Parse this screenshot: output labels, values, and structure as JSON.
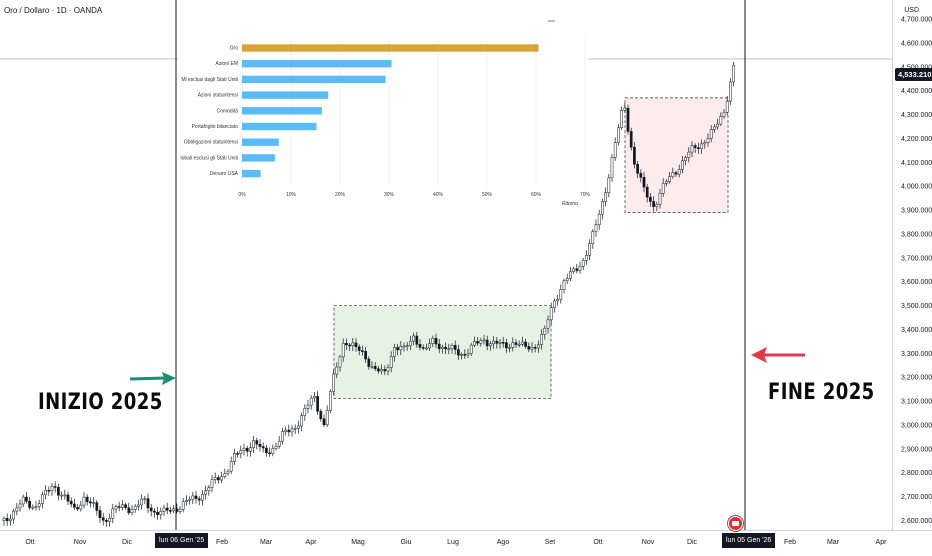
{
  "symbol": "Oro / Dollaro · 1D · OANDA",
  "currency": "USD",
  "current_price": "4,533.210",
  "time_markers": {
    "start": "lun 06 Gen '25",
    "end": "lun 05 Gen '26"
  },
  "annotations": {
    "start": "INIZIO 2025",
    "end": "FINE 2025"
  },
  "colors": {
    "gold_bar": "#d8a43a",
    "blue_bar": "#5bbcf5",
    "arrow_start": "#1c8e77",
    "arrow_end": "#e23a4a",
    "candle": "#131722",
    "range_green": "#e6f2e3",
    "range_red": "#fdeceb"
  },
  "chart_data": [
    {
      "type": "candlestick",
      "x_axis": {
        "ticks": [
          "Ott",
          "Nov",
          "Dic",
          "Feb",
          "Mar",
          "Apr",
          "Mag",
          "Giu",
          "Lug",
          "Ago",
          "Set",
          "Ott",
          "Nov",
          "Dic",
          "Feb",
          "Mar",
          "Apr"
        ]
      },
      "y_axis": {
        "ticks": [
          "2,600.000",
          "2,700.000",
          "2,800.000",
          "2,900.000",
          "3,000.000",
          "3,100.000",
          "3,200.000",
          "3,300.000",
          "3,400.000",
          "3,500.000",
          "3,600.000",
          "3,700.000",
          "3,800.000",
          "3,900.000",
          "4,000.000",
          "4,100.000",
          "4,200.000",
          "4,300.000",
          "4,400.000",
          "4,500.000",
          "4,600.000",
          "4,700.000"
        ],
        "range": [
          2560,
          4780
        ]
      },
      "series": [
        {
          "points": [
            [
              0,
              2600
            ],
            [
              10,
              2640
            ],
            [
              20,
              2680
            ],
            [
              30,
              2660
            ],
            [
              40,
              2700
            ],
            [
              50,
              2750
            ],
            [
              60,
              2700
            ],
            [
              70,
              2640
            ],
            [
              80,
              2700
            ],
            [
              90,
              2650
            ],
            [
              100,
              2600
            ],
            [
              110,
              2640
            ],
            [
              120,
              2660
            ],
            [
              130,
              2650
            ],
            [
              140,
              2680
            ],
            [
              150,
              2640
            ],
            [
              160,
              2630
            ],
            [
              170,
              2650
            ],
            [
              180,
              2670
            ],
            [
              190,
              2690
            ],
            [
              200,
              2720
            ],
            [
              210,
              2760
            ],
            [
              220,
              2800
            ],
            [
              230,
              2860
            ],
            [
              240,
              2900
            ],
            [
              250,
              2930
            ],
            [
              260,
              2880
            ],
            [
              270,
              2910
            ],
            [
              280,
              2960
            ],
            [
              290,
              2990
            ],
            [
              300,
              3050
            ],
            [
              310,
              3120
            ],
            [
              320,
              3000
            ],
            [
              330,
              3200
            ],
            [
              340,
              3360
            ],
            [
              350,
              3320
            ],
            [
              360,
              3300
            ],
            [
              370,
              3230
            ],
            [
              380,
              3210
            ],
            [
              390,
              3330
            ],
            [
              400,
              3310
            ],
            [
              410,
              3380
            ],
            [
              420,
              3300
            ],
            [
              430,
              3360
            ],
            [
              440,
              3320
            ],
            [
              450,
              3310
            ],
            [
              460,
              3300
            ],
            [
              470,
              3330
            ],
            [
              480,
              3360
            ],
            [
              490,
              3340
            ],
            [
              500,
              3330
            ],
            [
              510,
              3350
            ],
            [
              520,
              3320
            ],
            [
              530,
              3330
            ],
            [
              540,
              3380
            ],
            [
              550,
              3520
            ],
            [
              560,
              3600
            ],
            [
              570,
              3640
            ],
            [
              580,
              3700
            ],
            [
              590,
              3800
            ],
            [
              600,
              3960
            ],
            [
              610,
              4150
            ],
            [
              620,
              4350
            ],
            [
              630,
              4100
            ],
            [
              640,
              3980
            ],
            [
              650,
              3920
            ],
            [
              660,
              4000
            ],
            [
              670,
              4060
            ],
            [
              680,
              4110
            ],
            [
              690,
              4160
            ],
            [
              700,
              4190
            ],
            [
              710,
              4230
            ],
            [
              720,
              4320
            ],
            [
              730,
              4500
            ]
          ]
        }
      ]
    },
    {
      "type": "bar",
      "orientation": "horizontal",
      "legend": "",
      "xlabel": "Ritorno",
      "xticks": [
        "0%",
        "10%",
        "20%",
        "30%",
        "40%",
        "50%",
        "60%",
        "70%"
      ],
      "xlim": [
        0,
        70
      ],
      "categories": [
        "Oro",
        "Azioni EM",
        "Mi esclusi dagli Stati Uniti",
        "Azioni statunitensi",
        "Comodità",
        "Portafoglio bilanciato",
        "Obbligazioni statunitensi",
        "lobali esclusi gli Stati Uniti",
        "Denaro USA"
      ],
      "values": [
        60.5,
        30.5,
        29.3,
        17.6,
        16.3,
        15.2,
        7.5,
        6.7,
        3.8
      ]
    }
  ]
}
